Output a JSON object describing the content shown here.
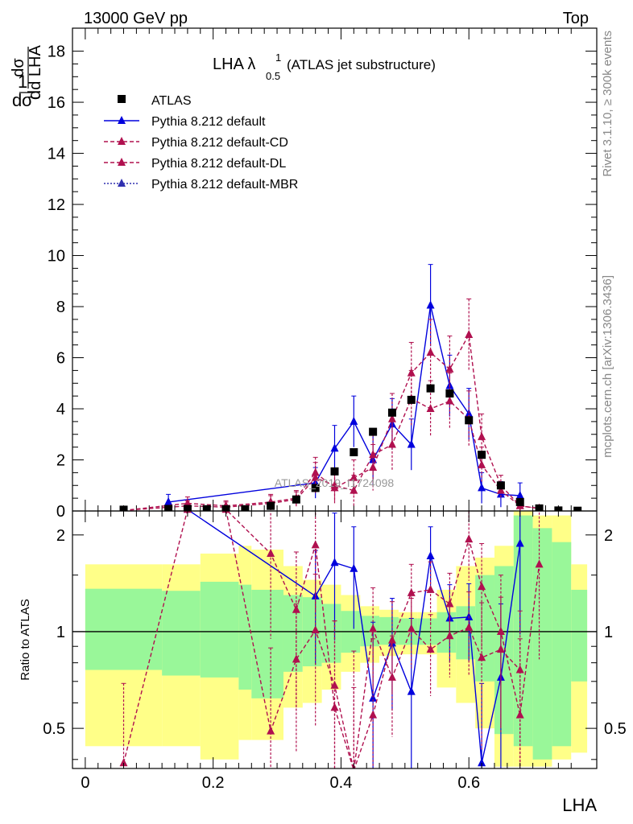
{
  "header": {
    "energy_label": "13000 GeV pp",
    "process_label": "Top"
  },
  "side_text": {
    "rivet": "Rivet 3.1.10, ≥ 300k events",
    "mcplots": "mcplots.cern.ch [arXiv:1306.3436]"
  },
  "plot_title": {
    "main": "LHA λ",
    "sup": "1",
    "sub": "0.5",
    "suffix": "(ATLAS jet substructure)"
  },
  "watermark": "ATLAS_2019_I1724098",
  "chart_data": [
    {
      "type": "scatter",
      "panel": "main",
      "xlabel": "LHA",
      "ylabel": "1/σ dσ/d LHA",
      "xlim": [
        -0.02,
        0.8
      ],
      "ylim": [
        0,
        18.9
      ],
      "xticks": [
        0,
        0.2,
        0.4,
        0.6
      ],
      "yticks": [
        0,
        2,
        4,
        6,
        8,
        10,
        12,
        14,
        16,
        18
      ],
      "legend": [
        "ATLAS",
        "Pythia 8.212 default",
        "Pythia 8.212 default-CD",
        "Pythia 8.212 default-DL",
        "Pythia 8.212 default-MBR"
      ],
      "legend_position": "top-left",
      "series": [
        {
          "name": "ATLAS",
          "style": "data",
          "color": "#000000",
          "x": [
            0.06,
            0.13,
            0.16,
            0.19,
            0.22,
            0.25,
            0.29,
            0.33,
            0.36,
            0.39,
            0.42,
            0.45,
            0.48,
            0.51,
            0.54,
            0.57,
            0.6,
            0.62,
            0.65,
            0.68,
            0.71,
            0.74,
            0.77
          ],
          "y": [
            0.05,
            0.08,
            0.08,
            0.07,
            0.07,
            0.07,
            0.2,
            0.45,
            0.9,
            1.55,
            2.3,
            3.1,
            3.85,
            4.35,
            4.8,
            4.6,
            3.55,
            2.2,
            1.0,
            0.35,
            0.1,
            0.02,
            0.01
          ]
        },
        {
          "name": "Pythia 8.212 default",
          "style": "solid",
          "color": "#0000dd",
          "x": [
            0.13,
            0.36,
            0.39,
            0.42,
            0.45,
            0.48,
            0.51,
            0.54,
            0.57,
            0.6,
            0.62,
            0.65,
            0.68
          ],
          "y": [
            0.35,
            1.1,
            2.45,
            3.5,
            2.0,
            3.4,
            2.6,
            8.05,
            4.9,
            3.8,
            0.9,
            0.65,
            0.6
          ],
          "err": [
            0.3,
            0.6,
            0.9,
            1.0,
            1.0,
            1.0,
            1.0,
            1.6,
            1.2,
            1.0,
            0.6,
            0.5,
            0.5
          ]
        },
        {
          "name": "Pythia 8.212 default-CD",
          "style": "dashed",
          "color": "#b0104f",
          "x": [
            0.06,
            0.16,
            0.22,
            0.29,
            0.33,
            0.36,
            0.39,
            0.42,
            0.45,
            0.48,
            0.51,
            0.54,
            0.57,
            0.6,
            0.62,
            0.65,
            0.68,
            0.71
          ],
          "y": [
            0.02,
            0.3,
            0.2,
            0.35,
            0.5,
            1.5,
            0.9,
            1.3,
            1.7,
            3.6,
            5.4,
            6.2,
            5.55,
            6.9,
            2.9,
            1.0,
            0.2,
            0.1
          ],
          "err": [
            0.05,
            0.25,
            0.2,
            0.3,
            0.3,
            0.6,
            0.6,
            0.7,
            0.9,
            1.0,
            1.2,
            1.3,
            1.3,
            1.4,
            0.9,
            0.4,
            0.2,
            0.1
          ]
        },
        {
          "name": "Pythia 8.212 default-DL",
          "style": "dashed",
          "color": "#b0104f",
          "x": [
            0.06,
            0.16,
            0.22,
            0.29,
            0.33,
            0.36,
            0.39,
            0.42,
            0.45,
            0.48,
            0.51,
            0.54,
            0.57,
            0.6,
            0.62,
            0.65,
            0.68,
            0.71
          ],
          "y": [
            0.02,
            0.2,
            0.15,
            0.3,
            0.45,
            1.3,
            1.0,
            0.8,
            2.2,
            2.6,
            4.4,
            4.0,
            4.3,
            3.6,
            1.8,
            0.8,
            0.2,
            0.1
          ],
          "err": [
            0.05,
            0.2,
            0.2,
            0.3,
            0.3,
            0.6,
            0.6,
            0.6,
            0.8,
            1.0,
            1.1,
            1.1,
            1.1,
            1.1,
            0.7,
            0.3,
            0.2,
            0.1
          ]
        },
        {
          "name": "Pythia 8.212 default-MBR",
          "style": "dotted",
          "color": "#3030b0",
          "x": [],
          "y": []
        }
      ]
    },
    {
      "type": "scatter",
      "panel": "ratio",
      "xlabel": "LHA",
      "ylabel": "Ratio to ATLAS",
      "xlim": [
        -0.02,
        0.8
      ],
      "ylim": [
        0.375,
        2.375
      ],
      "yticks": [
        0.5,
        1,
        2
      ],
      "reference_line": 1,
      "bands": {
        "colors": {
          "inner": "#99f799",
          "outer": "#ffff88"
        },
        "bins": [
          {
            "x0": 0.0,
            "x1": 0.12,
            "inner": [
              0.76,
              1.36
            ],
            "outer": [
              0.44,
              1.62
            ]
          },
          {
            "x0": 0.12,
            "x1": 0.18,
            "inner": [
              0.73,
              1.34
            ],
            "outer": [
              0.44,
              1.62
            ]
          },
          {
            "x0": 0.18,
            "x1": 0.24,
            "inner": [
              0.72,
              1.43
            ],
            "outer": [
              0.4,
              1.75
            ]
          },
          {
            "x0": 0.24,
            "x1": 0.26,
            "inner": [
              0.66,
              1.4
            ],
            "outer": [
              0.46,
              1.85
            ]
          },
          {
            "x0": 0.26,
            "x1": 0.31,
            "inner": [
              0.62,
              1.35
            ],
            "outer": [
              0.46,
              1.8
            ]
          },
          {
            "x0": 0.31,
            "x1": 0.34,
            "inner": [
              0.75,
              1.3
            ],
            "outer": [
              0.58,
              1.6
            ]
          },
          {
            "x0": 0.34,
            "x1": 0.37,
            "inner": [
              0.78,
              1.28
            ],
            "outer": [
              0.6,
              1.45
            ]
          },
          {
            "x0": 0.37,
            "x1": 0.4,
            "inner": [
              0.8,
              1.22
            ],
            "outer": [
              0.66,
              1.4
            ]
          },
          {
            "x0": 0.4,
            "x1": 0.43,
            "inner": [
              0.86,
              1.16
            ],
            "outer": [
              0.75,
              1.3
            ]
          },
          {
            "x0": 0.43,
            "x1": 0.46,
            "inner": [
              0.9,
              1.12
            ],
            "outer": [
              0.8,
              1.2
            ]
          },
          {
            "x0": 0.46,
            "x1": 0.49,
            "inner": [
              0.91,
              1.11
            ],
            "outer": [
              0.84,
              1.17
            ]
          },
          {
            "x0": 0.49,
            "x1": 0.52,
            "inner": [
              0.91,
              1.1
            ],
            "outer": [
              0.85,
              1.15
            ]
          },
          {
            "x0": 0.52,
            "x1": 0.55,
            "inner": [
              0.91,
              1.1
            ],
            "outer": [
              0.85,
              1.15
            ]
          },
          {
            "x0": 0.55,
            "x1": 0.58,
            "inner": [
              0.86,
              1.15
            ],
            "outer": [
              0.67,
              1.35
            ]
          },
          {
            "x0": 0.58,
            "x1": 0.61,
            "inner": [
              0.82,
              1.2
            ],
            "outer": [
              0.6,
              1.6
            ]
          },
          {
            "x0": 0.61,
            "x1": 0.64,
            "inner": [
              0.7,
              1.5
            ],
            "outer": [
              0.5,
              1.7
            ]
          },
          {
            "x0": 0.64,
            "x1": 0.67,
            "inner": [
              0.48,
              1.6
            ],
            "outer": [
              0.38,
              1.85
            ]
          },
          {
            "x0": 0.67,
            "x1": 0.7,
            "inner": [
              0.44,
              2.3
            ],
            "outer": [
              0.38,
              2.375
            ]
          },
          {
            "x0": 0.7,
            "x1": 0.73,
            "inner": [
              0.4,
              2.1
            ],
            "outer": [
              0.38,
              2.3
            ]
          },
          {
            "x0": 0.73,
            "x1": 0.76,
            "inner": [
              0.44,
              1.9
            ],
            "outer": [
              0.4,
              2.3
            ]
          },
          {
            "x0": 0.76,
            "x1": 0.785,
            "inner": [
              0.7,
              1.35
            ],
            "outer": [
              0.42,
              1.62
            ]
          }
        ]
      },
      "series": [
        {
          "name": "Pythia 8.212 default",
          "style": "solid",
          "color": "#0000dd",
          "x": [
            0.16,
            0.36,
            0.39,
            0.42,
            0.45,
            0.48,
            0.51,
            0.54,
            0.57,
            0.6,
            0.62,
            0.65,
            0.68
          ],
          "y": [
            2.4,
            1.29,
            1.64,
            1.57,
            0.62,
            0.92,
            0.65,
            1.72,
            1.1,
            1.11,
            0.39,
            0.72,
            1.88
          ],
          "err": [
            0.0,
            0.5,
            0.7,
            0.55,
            0.45,
            0.35,
            0.45,
            0.4,
            0.3,
            0.3,
            0.3,
            0.5,
            0.9
          ]
        },
        {
          "name": "Pythia 8.212 default-CD",
          "style": "dashed",
          "color": "#b0104f",
          "x": [
            0.06,
            0.16,
            0.22,
            0.29,
            0.33,
            0.36,
            0.39,
            0.42,
            0.45,
            0.48,
            0.51,
            0.54,
            0.57,
            0.6,
            0.62,
            0.65,
            0.68,
            0.71
          ],
          "y": [
            0.39,
            2.4,
            2.4,
            1.75,
            1.17,
            1.86,
            0.58,
            0.37,
            0.55,
            0.94,
            1.32,
            1.35,
            1.22,
            1.94,
            1.38,
            1.0,
            0.55,
            1.62
          ],
          "err": [
            0.3,
            0.0,
            0.0,
            0.8,
            0.6,
            0.7,
            0.5,
            0.5,
            0.4,
            0.3,
            0.3,
            0.3,
            0.3,
            0.5,
            0.5,
            0.5,
            0.4,
            0.8
          ]
        },
        {
          "name": "Pythia 8.212 default-DL",
          "style": "dashed",
          "color": "#b0104f",
          "x": [
            0.16,
            0.22,
            0.29,
            0.33,
            0.36,
            0.39,
            0.42,
            0.45,
            0.48,
            0.51,
            0.54,
            0.57,
            0.6,
            0.62,
            0.65,
            0.68
          ],
          "y": [
            2.4,
            2.4,
            0.49,
            0.82,
            1.01,
            0.68,
            0.37,
            1.02,
            0.72,
            1.02,
            0.88,
            0.97,
            1.03,
            0.83,
            0.88,
            0.76
          ],
          "err": [
            0.0,
            0.0,
            0.4,
            0.4,
            0.5,
            0.4,
            0.3,
            0.35,
            0.25,
            0.25,
            0.25,
            0.25,
            0.3,
            0.4,
            0.4,
            0.4
          ]
        }
      ]
    }
  ]
}
